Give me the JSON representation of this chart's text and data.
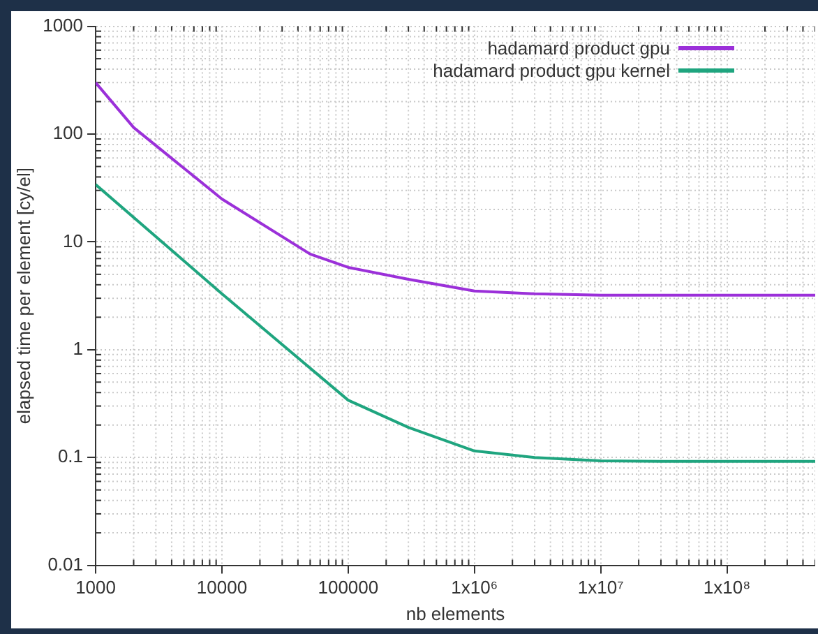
{
  "chart_data": {
    "type": "line",
    "xlabel": "nb elements",
    "ylabel": "elapsed time per element [cy/el]",
    "log": "xy",
    "grid": true,
    "legend": "top right",
    "marker": "none",
    "line_style": "solid",
    "xlim": [
      1000,
      500000000
    ],
    "xticks": [
      1000,
      10000,
      100000,
      {
        "value": 1000000,
        "label": "1x10⁶"
      },
      {
        "value": 10000000,
        "label": "1x10⁷"
      },
      {
        "value": 100000000,
        "label": "1x10⁸"
      }
    ],
    "ylim": [
      0.01,
      1000
    ],
    "yticks": [
      0.01,
      0.1,
      1,
      10,
      100,
      1000
    ],
    "series": [
      {
        "name": "hadamard product gpu",
        "color": "#9b30d9",
        "x": [
          1000,
          2000,
          10000,
          50000,
          100000,
          300000,
          1000000,
          3000000,
          10000000,
          100000000,
          500000000
        ],
        "values": [
          300,
          115,
          25,
          7.7,
          5.8,
          4.5,
          3.5,
          3.3,
          3.2,
          3.2,
          3.2
        ]
      },
      {
        "name": "hadamard product gpu kernel",
        "color": "#1fa57f",
        "x": [
          1000,
          10000,
          100000,
          300000,
          1000000,
          3000000,
          10000000,
          30000000,
          500000000
        ],
        "values": [
          34,
          3.3,
          0.34,
          0.19,
          0.115,
          0.1,
          0.093,
          0.092,
          0.092
        ]
      }
    ]
  }
}
